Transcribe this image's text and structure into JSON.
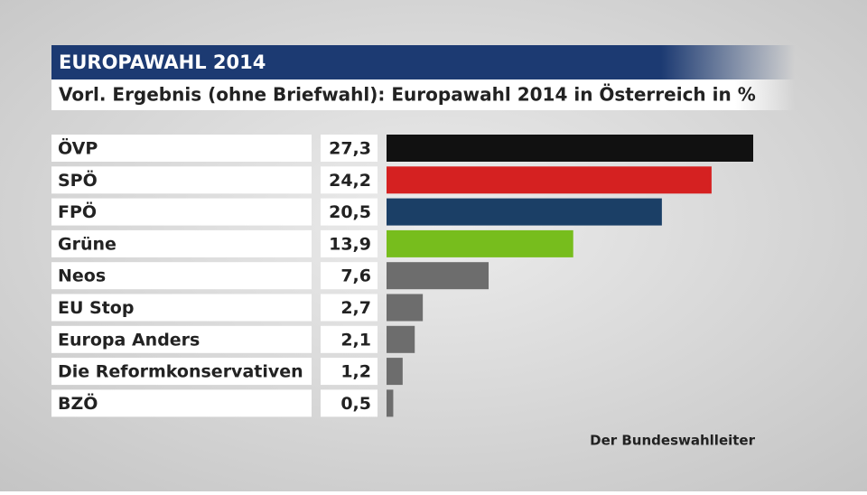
{
  "chart_data": {
    "type": "bar",
    "orientation": "horizontal",
    "header": "EUROPAWAHL 2014",
    "title": "Vorl. Ergebnis (ohne Briefwahl): Europawahl 2014 in Österreich in %",
    "categories": [
      "ÖVP",
      "SPÖ",
      "FPÖ",
      "Grüne",
      "Neos",
      "EU Stop",
      "Europa Anders",
      "Die Reformkonservativen",
      "BZÖ"
    ],
    "values": [
      27.3,
      24.2,
      20.5,
      13.9,
      7.6,
      2.7,
      2.1,
      1.2,
      0.5
    ],
    "value_labels": [
      "27,3",
      "24,2",
      "20,5",
      "13,9",
      "7,6",
      "2,7",
      "2,1",
      "1,2",
      "0,5"
    ],
    "colors": [
      "#111111",
      "#d52121",
      "#1b3f66",
      "#77bd1d",
      "#6d6d6d",
      "#6d6d6d",
      "#6d6d6d",
      "#6d6d6d",
      "#6d6d6d"
    ],
    "source": "Der Bundeswahlleiter"
  }
}
